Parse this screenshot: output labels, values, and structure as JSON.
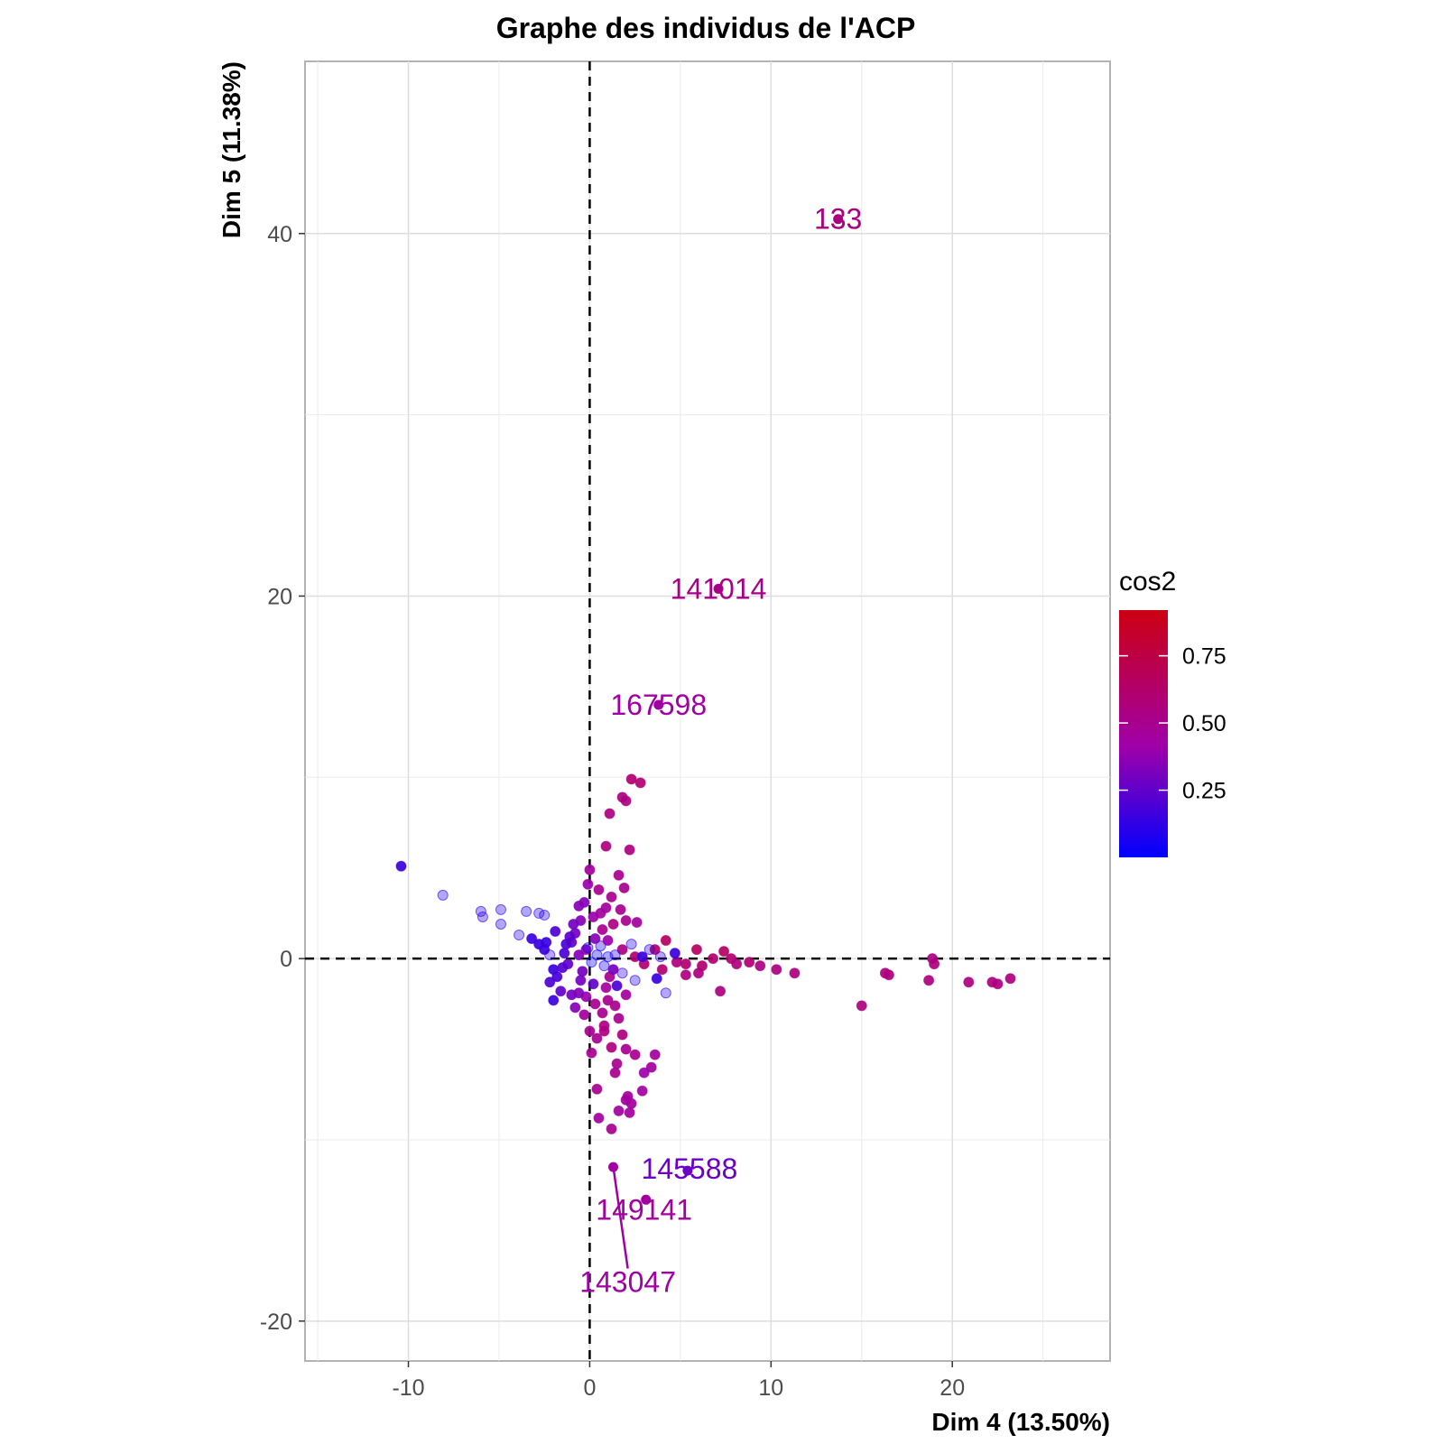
{
  "chart_data": {
    "type": "scatter",
    "title": "Graphe des individus de l'ACP",
    "xlabel": "Dim 4 (13.50%)",
    "ylabel": "Dim 5 (11.38%)",
    "xlim": [
      -15.7,
      28.7
    ],
    "ylim": [
      -22.2,
      49.5
    ],
    "x_ticks": [
      -10,
      0,
      10,
      20
    ],
    "y_ticks": [
      -20,
      0,
      20,
      40
    ],
    "x_tick_labels": [
      "-10",
      "0",
      "10",
      "20"
    ],
    "y_tick_labels": [
      "-20",
      "0",
      "20",
      "40"
    ],
    "grid": true,
    "reference_lines": {
      "x": 0,
      "y": 0,
      "style": "dashed"
    },
    "legend": {
      "title": "cos2",
      "placement": "right",
      "type": "gradient",
      "min": 0.0,
      "max": 0.92,
      "ticks": [
        0.25,
        0.5,
        0.75
      ],
      "tick_labels": [
        "0.25",
        "0.50",
        "0.75"
      ],
      "colors": {
        "low": "#0000ff",
        "mid": "#a000a8",
        "high": "#cc0011"
      }
    },
    "labeled_points": [
      {
        "label": "133",
        "x": 13.7,
        "y": 40.8,
        "cos2": 0.55
      },
      {
        "label": "141014",
        "x": 7.1,
        "y": 20.4,
        "cos2": 0.52
      },
      {
        "label": "167598",
        "x": 3.8,
        "y": 14.0,
        "cos2": 0.42
      },
      {
        "label": "145588",
        "x": 5.4,
        "y": -11.7,
        "cos2": 0.28
      },
      {
        "label": "149141",
        "x": 3.1,
        "y": -13.3,
        "cos2": 0.45
      },
      {
        "label": "143047",
        "x": 1.3,
        "y": -11.5,
        "cos2": 0.42
      }
    ],
    "points": [
      [
        -10.4,
        5.1,
        0.15
      ],
      [
        -8.1,
        3.5,
        0.1
      ],
      [
        -6.0,
        2.6,
        0.1
      ],
      [
        -5.9,
        2.3,
        0.12
      ],
      [
        -4.9,
        2.7,
        0.12
      ],
      [
        -4.9,
        1.9,
        0.1
      ],
      [
        -3.5,
        2.6,
        0.08
      ],
      [
        -2.8,
        2.5,
        0.1
      ],
      [
        -2.5,
        2.4,
        0.1
      ],
      [
        -3.9,
        1.3,
        0.12
      ],
      [
        -3.2,
        1.1,
        0.15
      ],
      [
        -2.8,
        0.8,
        0.15
      ],
      [
        -2.5,
        0.5,
        0.15
      ],
      [
        -2.2,
        0.2,
        0.12
      ],
      [
        -2.0,
        -0.6,
        0.15
      ],
      [
        -1.8,
        -1.0,
        0.18
      ],
      [
        -1.4,
        0.3,
        0.2
      ],
      [
        -1.2,
        -0.3,
        0.25
      ],
      [
        -1.0,
        0.9,
        0.25
      ],
      [
        -0.8,
        1.4,
        0.3
      ],
      [
        -0.6,
        0.2,
        0.35
      ],
      [
        -0.4,
        -0.7,
        0.3
      ],
      [
        -0.2,
        0.5,
        0.4
      ],
      [
        -0.5,
        2.1,
        0.35
      ],
      [
        -0.3,
        3.1,
        0.35
      ],
      [
        0.0,
        4.9,
        0.45
      ],
      [
        -0.1,
        4.1,
        0.4
      ],
      [
        -0.6,
        2.9,
        0.35
      ],
      [
        -1.9,
        1.5,
        0.2
      ],
      [
        -2.2,
        -1.3,
        0.2
      ],
      [
        -1.6,
        -1.8,
        0.25
      ],
      [
        -2.0,
        -2.3,
        0.15
      ],
      [
        -1.0,
        -2.0,
        0.3
      ],
      [
        -0.8,
        -2.7,
        0.35
      ],
      [
        -0.3,
        -3.1,
        0.45
      ],
      [
        0.1,
        -5.2,
        0.5
      ],
      [
        0.4,
        -4.4,
        0.5
      ],
      [
        0.8,
        -3.7,
        0.55
      ],
      [
        1.2,
        -4.9,
        0.55
      ],
      [
        1.8,
        -4.2,
        0.55
      ],
      [
        2.0,
        -5.0,
        0.5
      ],
      [
        1.5,
        -5.8,
        0.5
      ],
      [
        2.5,
        -5.3,
        0.5
      ],
      [
        3.6,
        -5.3,
        0.45
      ],
      [
        3.4,
        -6.0,
        0.45
      ],
      [
        3.0,
        -6.3,
        0.4
      ],
      [
        1.4,
        -6.3,
        0.5
      ],
      [
        2.9,
        -7.3,
        0.45
      ],
      [
        2.1,
        -7.6,
        0.45
      ],
      [
        0.4,
        -7.2,
        0.5
      ],
      [
        1.6,
        -8.4,
        0.45
      ],
      [
        2.3,
        -8.0,
        0.45
      ],
      [
        2.0,
        -7.8,
        0.45
      ],
      [
        2.2,
        -8.5,
        0.45
      ],
      [
        0.5,
        -8.8,
        0.45
      ],
      [
        1.2,
        -9.4,
        0.5
      ],
      [
        0.8,
        -4.0,
        0.55
      ],
      [
        0.3,
        -2.5,
        0.5
      ],
      [
        0.9,
        -1.6,
        0.45
      ],
      [
        1.4,
        -2.6,
        0.5
      ],
      [
        2.3,
        9.9,
        0.6
      ],
      [
        2.8,
        9.7,
        0.6
      ],
      [
        1.8,
        8.9,
        0.55
      ],
      [
        2.0,
        8.7,
        0.55
      ],
      [
        1.1,
        8.0,
        0.55
      ],
      [
        0.9,
        6.2,
        0.55
      ],
      [
        2.2,
        6.0,
        0.55
      ],
      [
        1.6,
        4.6,
        0.5
      ],
      [
        0.5,
        3.8,
        0.5
      ],
      [
        1.2,
        3.4,
        0.5
      ],
      [
        1.9,
        3.9,
        0.5
      ],
      [
        2.0,
        2.1,
        0.5
      ],
      [
        1.3,
        1.9,
        0.55
      ],
      [
        0.7,
        1.6,
        0.5
      ],
      [
        1.8,
        0.5,
        0.55
      ],
      [
        2.5,
        0.1,
        0.6
      ],
      [
        3.0,
        -0.3,
        0.6
      ],
      [
        3.6,
        0.5,
        0.65
      ],
      [
        4.2,
        1.0,
        0.65
      ],
      [
        4.0,
        -0.6,
        0.6
      ],
      [
        4.8,
        -0.2,
        0.55
      ],
      [
        5.3,
        -0.3,
        0.6
      ],
      [
        5.9,
        0.5,
        0.65
      ],
      [
        6.2,
        -0.4,
        0.6
      ],
      [
        6.8,
        0.0,
        0.6
      ],
      [
        7.4,
        0.4,
        0.65
      ],
      [
        7.8,
        0.0,
        0.6
      ],
      [
        8.1,
        -0.3,
        0.55
      ],
      [
        8.8,
        -0.2,
        0.6
      ],
      [
        9.4,
        -0.4,
        0.55
      ],
      [
        10.3,
        -0.6,
        0.55
      ],
      [
        11.3,
        -0.8,
        0.55
      ],
      [
        7.2,
        -1.8,
        0.55
      ],
      [
        5.3,
        -0.9,
        0.55
      ],
      [
        6.0,
        -0.8,
        0.55
      ],
      [
        15.0,
        -2.6,
        0.55
      ],
      [
        16.3,
        -0.8,
        0.55
      ],
      [
        16.5,
        -0.9,
        0.55
      ],
      [
        18.7,
        -1.2,
        0.55
      ],
      [
        18.9,
        0.0,
        0.55
      ],
      [
        19.0,
        -0.3,
        0.55
      ],
      [
        20.9,
        -1.3,
        0.55
      ],
      [
        22.2,
        -1.3,
        0.55
      ],
      [
        22.5,
        -1.4,
        0.55
      ],
      [
        23.2,
        -1.1,
        0.55
      ],
      [
        1.4,
        0.2,
        0.1
      ],
      [
        1.8,
        -0.8,
        0.12
      ],
      [
        2.3,
        0.8,
        0.1
      ],
      [
        3.3,
        0.5,
        0.12
      ],
      [
        3.7,
        -1.1,
        0.15
      ],
      [
        4.2,
        -1.9,
        0.12
      ],
      [
        2.5,
        -1.2,
        0.1
      ],
      [
        0.8,
        -0.4,
        0.05
      ],
      [
        0.4,
        0.2,
        0.03
      ],
      [
        0.1,
        -0.2,
        0.02
      ],
      [
        -0.1,
        0.6,
        0.05
      ],
      [
        0.6,
        0.7,
        0.05
      ],
      [
        1.0,
        0.1,
        0.06
      ],
      [
        4.7,
        0.3,
        0.15
      ],
      [
        3.9,
        0.1,
        0.12
      ],
      [
        2.9,
        0.1,
        0.15
      ],
      [
        1.5,
        -1.5,
        0.2
      ],
      [
        0.2,
        -1.4,
        0.25
      ],
      [
        -0.5,
        -1.2,
        0.3
      ],
      [
        -1.3,
        0.8,
        0.2
      ],
      [
        -0.9,
        1.9,
        0.3
      ],
      [
        0.6,
        2.5,
        0.45
      ],
      [
        1.0,
        1.0,
        0.4
      ],
      [
        0.3,
        1.1,
        0.35
      ],
      [
        -0.2,
        -2.1,
        0.4
      ],
      [
        0.7,
        -3.0,
        0.5
      ],
      [
        1.6,
        -3.3,
        0.5
      ],
      [
        1.1,
        -1.0,
        0.5
      ],
      [
        2.0,
        -2.0,
        0.45
      ],
      [
        -1.5,
        -0.5,
        0.22
      ],
      [
        -2.4,
        0.9,
        0.14
      ],
      [
        -1.1,
        1.2,
        0.24
      ],
      [
        0.2,
        2.3,
        0.4
      ],
      [
        0.9,
        2.8,
        0.45
      ],
      [
        1.7,
        2.7,
        0.5
      ],
      [
        2.6,
        2.0,
        0.45
      ],
      [
        0.0,
        -4.0,
        0.5
      ],
      [
        1.0,
        -2.3,
        0.5
      ],
      [
        -0.6,
        -1.9,
        0.33
      ],
      [
        1.3,
        -0.6,
        0.3
      ]
    ]
  }
}
